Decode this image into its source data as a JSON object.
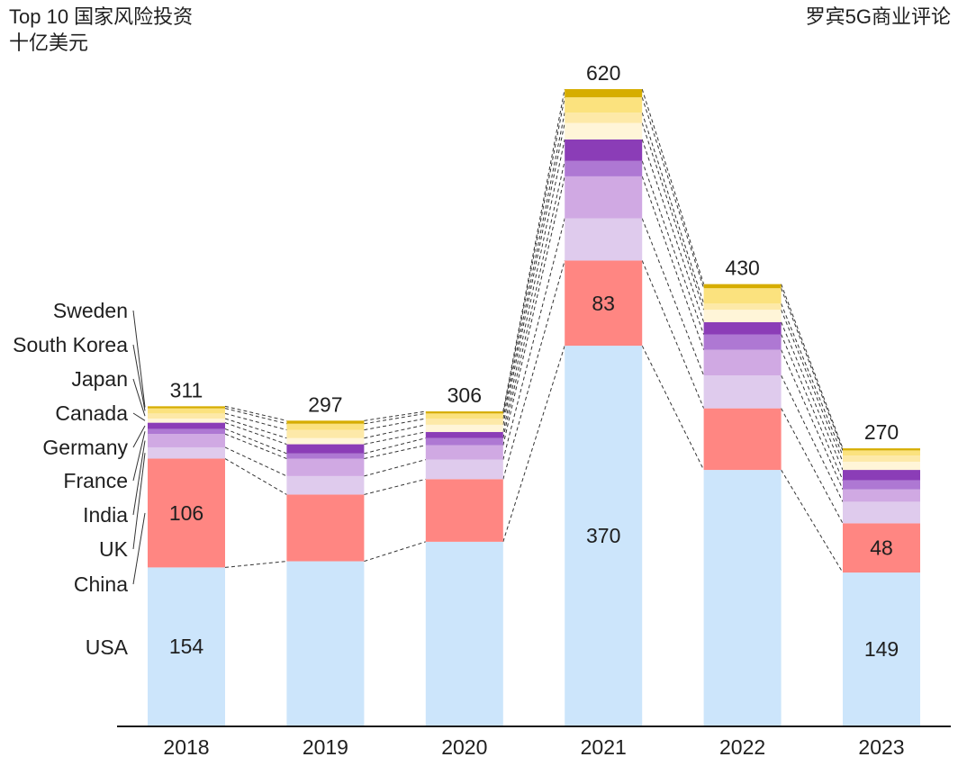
{
  "header": {
    "title_line1": "Top 10 国家风险投资",
    "title_line2": "十亿美元",
    "source": "罗宾5G商业评论"
  },
  "chart_data": {
    "type": "bar",
    "stacked": true,
    "title": "Top 10 国家风险投资",
    "subtitle": "十亿美元",
    "xlabel": "",
    "ylabel": "十亿美元",
    "ylim": [
      0,
      620
    ],
    "grid": false,
    "legend": "left (labels beside first bar)",
    "categories": [
      "2018",
      "2019",
      "2020",
      "2021",
      "2022",
      "2023"
    ],
    "totals": [
      311,
      297,
      306,
      620,
      430,
      270
    ],
    "series": [
      {
        "name": "USA",
        "color": "#cce5fb",
        "values": [
          154,
          160,
          179,
          370,
          249,
          149
        ],
        "labeled": [
          true,
          false,
          false,
          true,
          false,
          true
        ]
      },
      {
        "name": "China",
        "color": "#ff8682",
        "values": [
          106,
          65,
          61,
          83,
          60,
          48
        ],
        "labeled": [
          true,
          false,
          false,
          true,
          false,
          true
        ]
      },
      {
        "name": "UK",
        "color": "#dfcbed",
        "values": [
          11,
          18,
          19,
          41,
          32,
          21
        ]
      },
      {
        "name": "India",
        "color": "#d0a9e3",
        "values": [
          13,
          17,
          14,
          41,
          25,
          12
        ]
      },
      {
        "name": "France",
        "color": "#ae78d3",
        "values": [
          5,
          5,
          7,
          15,
          15,
          9
        ]
      },
      {
        "name": "Germany",
        "color": "#8b3db7",
        "values": [
          6,
          9,
          6,
          21,
          12,
          10
        ]
      },
      {
        "name": "Canada",
        "color": "#fff5d8",
        "values": [
          4,
          6,
          7,
          16,
          12,
          8
        ]
      },
      {
        "name": "Japan",
        "color": "#fde9a8",
        "values": [
          5,
          8,
          6,
          10,
          6,
          6
        ]
      },
      {
        "name": "South Korea",
        "color": "#fbe27e",
        "values": [
          5,
          6,
          5,
          15,
          15,
          5
        ]
      },
      {
        "name": "Sweden",
        "color": "#d6ad00",
        "values": [
          2,
          3,
          2,
          8,
          4,
          2
        ]
      }
    ]
  }
}
